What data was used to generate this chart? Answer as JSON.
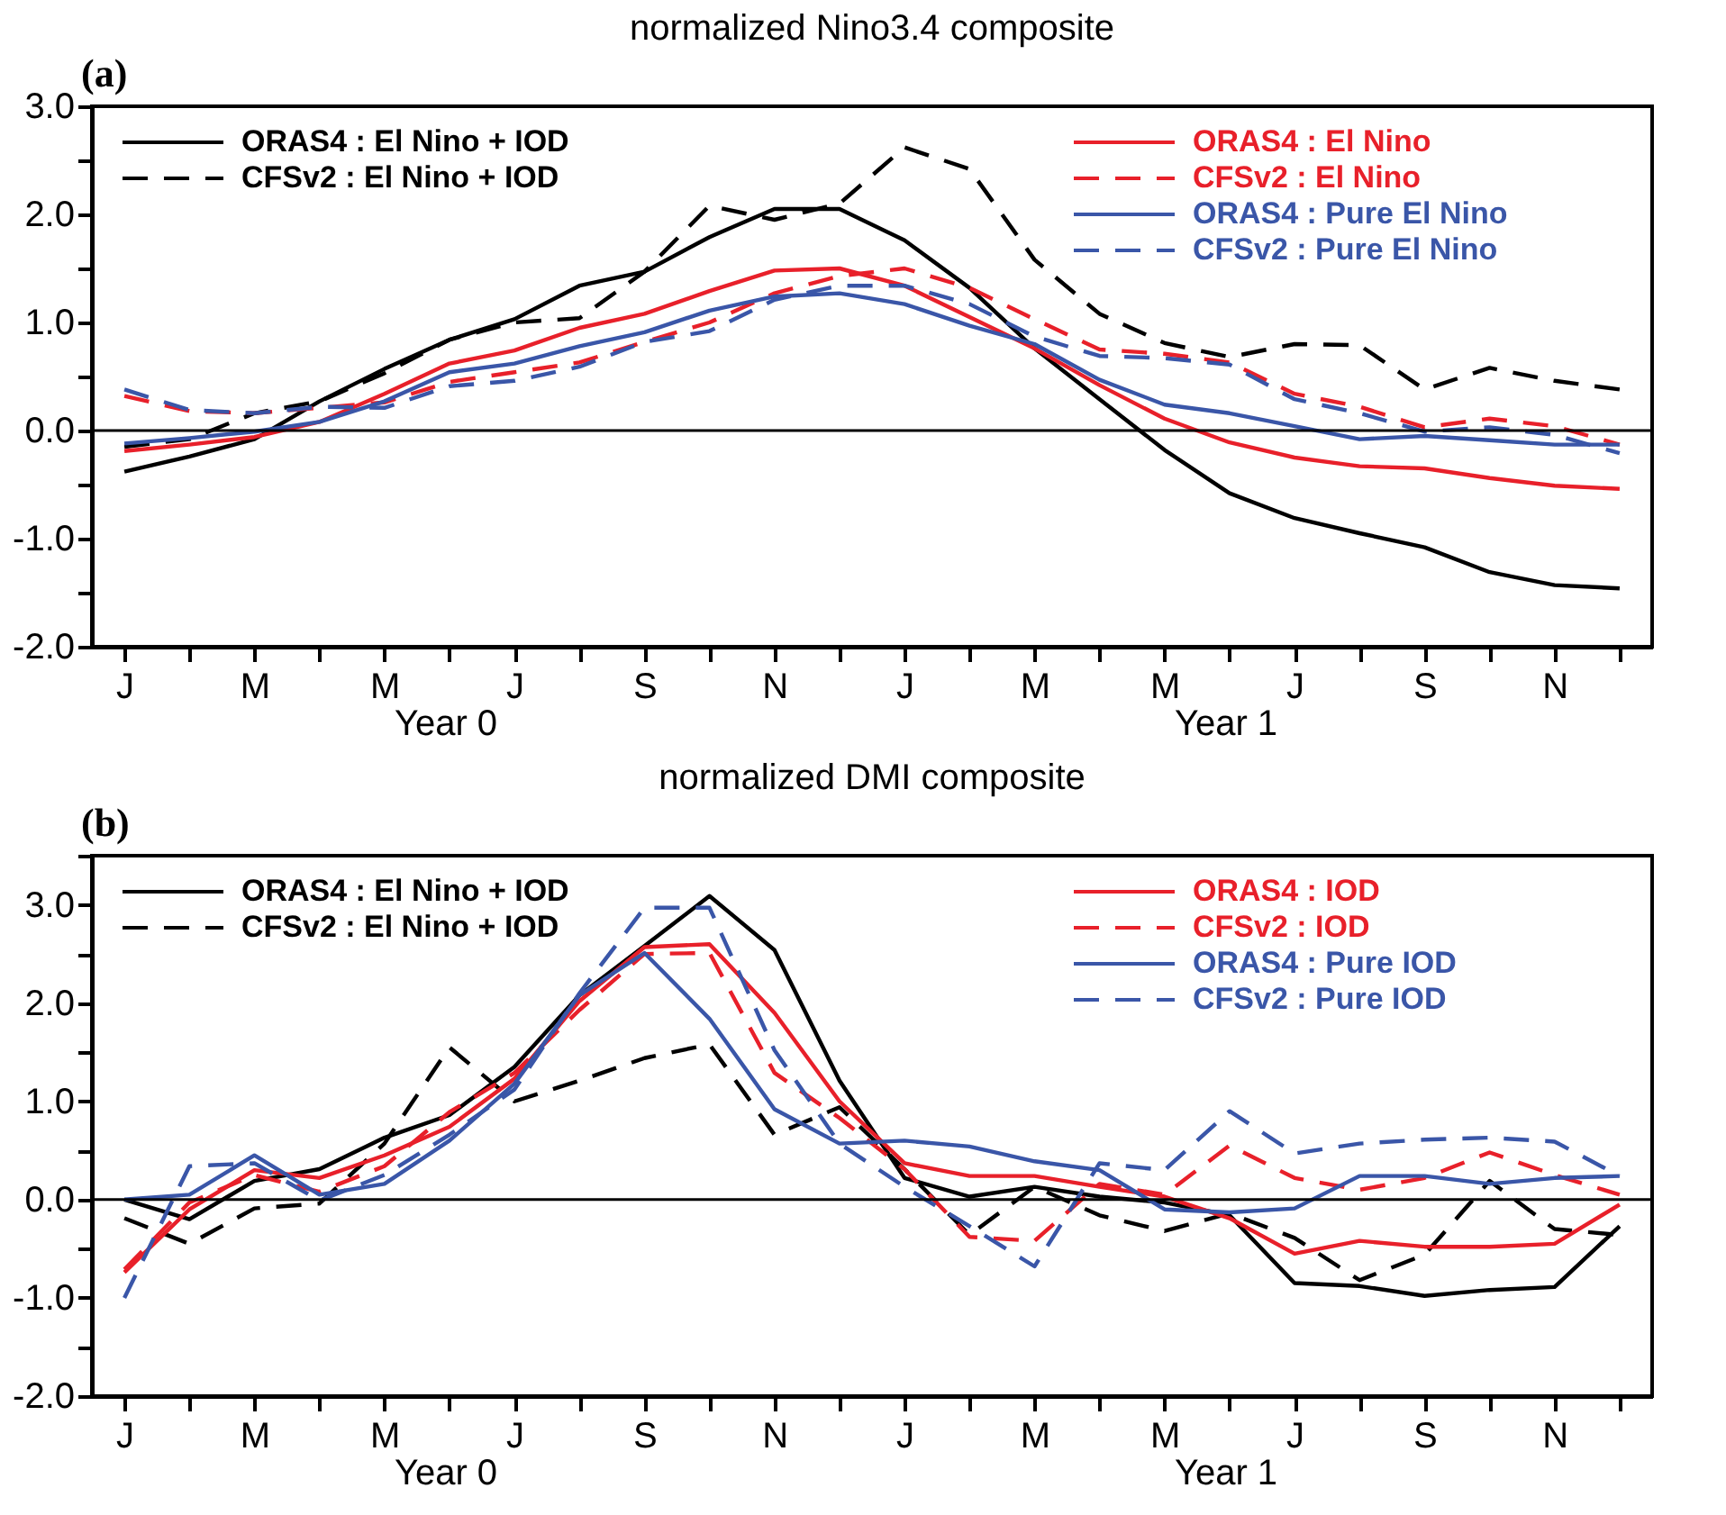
{
  "chart_data": [
    {
      "type": "line",
      "title": "normalized Nino3.4 composite",
      "annotations": [
        "(a)",
        "Year 0",
        "Year 1"
      ],
      "legend": "top",
      "grid": false,
      "categories": [
        "J",
        null,
        "M",
        null,
        "M",
        null,
        "J",
        null,
        "S",
        null,
        "N",
        null,
        "J",
        null,
        "M",
        null,
        "M",
        null,
        "J",
        null,
        "S",
        null,
        "N",
        null
      ],
      "ylim": [
        -2,
        3
      ],
      "yticks": [
        {
          "value": -2,
          "label": "-2.0"
        },
        {
          "value": -1.5,
          "label": null
        },
        {
          "value": -1,
          "label": "-1.0"
        },
        {
          "value": -0.5,
          "label": null
        },
        {
          "value": 0,
          "label": "0.0"
        },
        {
          "value": 0.5,
          "label": null
        },
        {
          "value": 1,
          "label": "1.0"
        },
        {
          "value": 1.5,
          "label": null
        },
        {
          "value": 2,
          "label": "2.0"
        },
        {
          "value": 2.5,
          "label": null
        },
        {
          "value": 3,
          "label": "3.0"
        }
      ],
      "ref_lines": [
        {
          "axis": "y",
          "value": 0,
          "color": "#000000"
        }
      ],
      "series": [
        {
          "name": "ORAS4 : El Nino + IOD",
          "color": "#000000",
          "line_style": "solid",
          "values": [
            -0.38,
            -0.24,
            -0.08,
            0.27,
            0.57,
            0.84,
            1.03,
            1.34,
            1.47,
            1.79,
            2.05,
            2.05,
            1.76,
            1.32,
            0.76,
            0.29,
            -0.18,
            -0.58,
            -0.81,
            -0.95,
            -1.08,
            -1.31,
            -1.43,
            -1.46
          ]
        },
        {
          "name": "CFSv2 : El Nino + IOD",
          "color": "#000000",
          "line_style": "dashed",
          "values": [
            -0.15,
            -0.08,
            0.16,
            0.27,
            0.53,
            0.84,
            1.0,
            1.04,
            1.47,
            2.08,
            1.95,
            2.1,
            2.62,
            2.42,
            1.58,
            1.08,
            0.81,
            0.68,
            0.8,
            0.79,
            0.38,
            0.58,
            0.46,
            0.38
          ]
        },
        {
          "name": "ORAS4 : El Nino",
          "color": "#e8202a",
          "line_style": "solid",
          "values": [
            -0.19,
            -0.13,
            -0.06,
            0.08,
            0.34,
            0.62,
            0.74,
            0.95,
            1.08,
            1.29,
            1.48,
            1.5,
            1.34,
            1.05,
            0.76,
            0.42,
            0.11,
            -0.11,
            -0.25,
            -0.33,
            -0.35,
            -0.44,
            -0.51,
            -0.54
          ]
        },
        {
          "name": "CFSv2 : El Nino",
          "color": "#e8202a",
          "line_style": "dashed",
          "values": [
            0.32,
            0.18,
            0.16,
            0.21,
            0.26,
            0.45,
            0.54,
            0.63,
            0.82,
            1.0,
            1.27,
            1.43,
            1.5,
            1.32,
            1.03,
            0.75,
            0.71,
            0.63,
            0.34,
            0.22,
            0.03,
            0.11,
            0.04,
            -0.13
          ]
        },
        {
          "name": "ORAS4 : Pure El Nino",
          "color": "#3a56a8",
          "line_style": "solid",
          "values": [
            -0.12,
            -0.07,
            -0.01,
            0.08,
            0.27,
            0.54,
            0.62,
            0.78,
            0.91,
            1.11,
            1.24,
            1.27,
            1.17,
            0.97,
            0.8,
            0.47,
            0.24,
            0.16,
            0.04,
            -0.08,
            -0.05,
            -0.09,
            -0.13,
            -0.13
          ]
        },
        {
          "name": "CFSv2 : Pure El Nino",
          "color": "#3a56a8",
          "line_style": "dashed",
          "values": [
            0.38,
            0.19,
            0.16,
            0.22,
            0.21,
            0.41,
            0.46,
            0.59,
            0.82,
            0.92,
            1.21,
            1.34,
            1.34,
            1.17,
            0.87,
            0.69,
            0.67,
            0.61,
            0.29,
            0.16,
            -0.01,
            0.03,
            -0.04,
            -0.21
          ]
        }
      ]
    },
    {
      "type": "line",
      "title": "normalized DMI composite",
      "annotations": [
        "(b)",
        "Year 0",
        "Year 1"
      ],
      "legend": "top",
      "grid": false,
      "categories": [
        "J",
        null,
        "M",
        null,
        "M",
        null,
        "J",
        null,
        "S",
        null,
        "N",
        null,
        "J",
        null,
        "M",
        null,
        "M",
        null,
        "J",
        null,
        "S",
        null,
        "N",
        null
      ],
      "ylim": [
        -2,
        3.5
      ],
      "yticks": [
        {
          "value": -2,
          "label": "-2.0"
        },
        {
          "value": -1.5,
          "label": null
        },
        {
          "value": -1,
          "label": "-1.0"
        },
        {
          "value": -0.5,
          "label": null
        },
        {
          "value": 0,
          "label": "0.0"
        },
        {
          "value": 0.5,
          "label": null
        },
        {
          "value": 1,
          "label": "1.0"
        },
        {
          "value": 1.5,
          "label": null
        },
        {
          "value": 2,
          "label": "2.0"
        },
        {
          "value": 2.5,
          "label": null
        },
        {
          "value": 3,
          "label": "3.0"
        },
        {
          "value": 3.5,
          "label": null
        }
      ],
      "ref_lines": [
        {
          "axis": "y",
          "value": 0,
          "color": "#000000"
        }
      ],
      "series": [
        {
          "name": "ORAS4 : El Nino + IOD",
          "color": "#000000",
          "line_style": "solid",
          "values": [
            0,
            -0.2,
            0.19,
            0.31,
            0.63,
            0.86,
            1.35,
            2.08,
            2.58,
            3.09,
            2.54,
            1.21,
            0.22,
            0.03,
            0.13,
            0.03,
            -0.03,
            -0.16,
            -0.85,
            -0.88,
            -0.98,
            -0.92,
            -0.89,
            -0.27
          ]
        },
        {
          "name": "CFSv2 : El Nino + IOD",
          "color": "#000000",
          "line_style": "dashed",
          "values": [
            -0.19,
            -0.45,
            -0.09,
            -0.04,
            0.57,
            1.55,
            1.0,
            1.21,
            1.44,
            1.58,
            0.66,
            0.94,
            0.31,
            -0.36,
            0.13,
            -0.16,
            -0.32,
            -0.14,
            -0.39,
            -0.82,
            -0.56,
            0.19,
            -0.3,
            -0.36
          ]
        },
        {
          "name": "ORAS4 : IOD",
          "color": "#e8202a",
          "line_style": "solid",
          "values": [
            -0.74,
            -0.1,
            0.3,
            0.22,
            0.45,
            0.74,
            1.23,
            2.02,
            2.57,
            2.6,
            1.9,
            1.0,
            0.37,
            0.24,
            0.24,
            0.13,
            0.03,
            -0.19,
            -0.55,
            -0.42,
            -0.48,
            -0.48,
            -0.45,
            -0.05
          ]
        },
        {
          "name": "CFSv2 : IOD",
          "color": "#e8202a",
          "line_style": "dashed",
          "values": [
            -0.71,
            -0.03,
            0.25,
            0.08,
            0.34,
            0.89,
            1.29,
            1.93,
            2.5,
            2.51,
            1.29,
            0.83,
            0.31,
            -0.38,
            -0.42,
            0.16,
            0.05,
            0.55,
            0.22,
            0.1,
            0.22,
            0.48,
            0.25,
            0.05
          ]
        },
        {
          "name": "ORAS4 : Pure IOD",
          "color": "#3a56a8",
          "line_style": "solid",
          "values": [
            0,
            0.05,
            0.45,
            0.05,
            0.16,
            0.6,
            1.18,
            2.08,
            2.51,
            1.84,
            0.92,
            0.57,
            0.6,
            0.54,
            0.39,
            0.3,
            -0.1,
            -0.13,
            -0.09,
            0.24,
            0.24,
            0.16,
            0.22,
            0.24
          ]
        },
        {
          "name": "CFSv2 : Pure IOD",
          "color": "#3a56a8",
          "line_style": "dashed",
          "values": [
            -1.0,
            0.34,
            0.37,
            -0.01,
            0.25,
            0.66,
            1.12,
            2.1,
            2.97,
            2.97,
            1.52,
            0.57,
            0.13,
            -0.27,
            -0.68,
            0.37,
            0.3,
            0.9,
            0.47,
            0.57,
            0.61,
            0.63,
            0.59,
            0.24
          ]
        }
      ]
    }
  ]
}
